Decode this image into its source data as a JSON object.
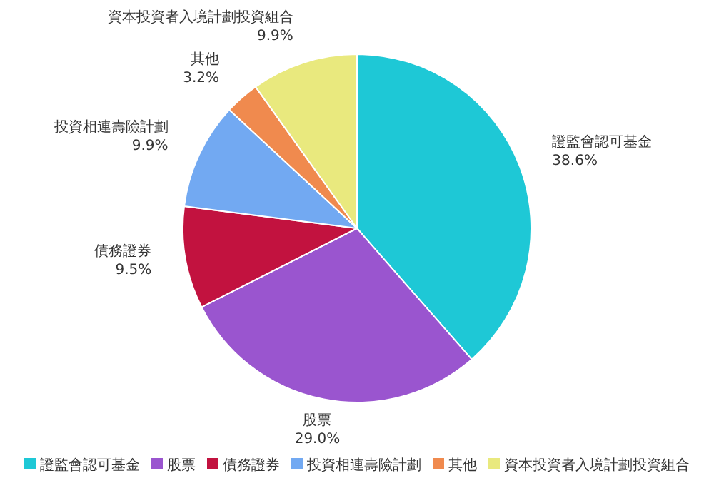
{
  "chart_data": {
    "type": "pie",
    "categories": [
      "證監會認可基金",
      "股票",
      "債務證券",
      "投資相連壽險計劃",
      "其他",
      "資本投資者入境計劃投資組合"
    ],
    "values": [
      38.6,
      29.0,
      9.5,
      9.9,
      3.2,
      9.9
    ],
    "colors": [
      "#1ec8d6",
      "#9a55cf",
      "#c2123f",
      "#72a9f2",
      "#f08a4e",
      "#e9e97e"
    ],
    "value_labels": [
      "38.6%",
      "29.0%",
      "9.5%",
      "9.9%",
      "3.2%",
      "9.9%"
    ],
    "legend": "bottom"
  }
}
